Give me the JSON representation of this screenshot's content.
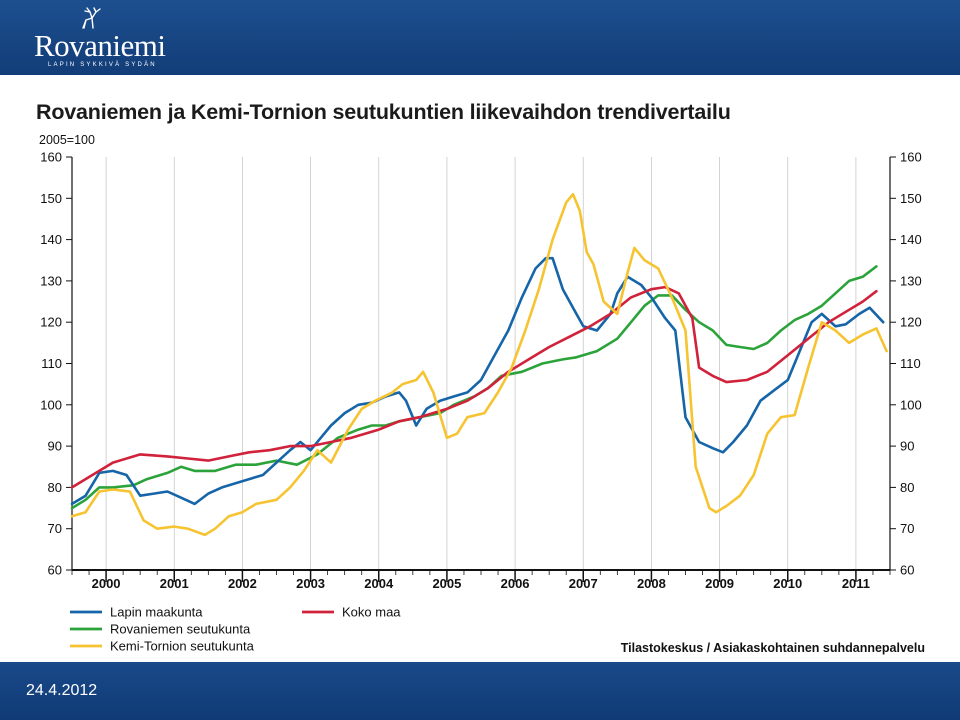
{
  "header": {
    "logo_text": "Rovaniemi",
    "logo_tagline": "LAPIN SYKKIVÄ SYDÄN",
    "brand_color": "#16437f"
  },
  "footer": {
    "date": "24.4.2012"
  },
  "chart_data": {
    "type": "line",
    "title": "Rovaniemen ja Kemi-Tornion seutukuntien liikevaihdon trendivertailu",
    "ylabel": "2005=100",
    "source": "Tilastokeskus / Asiakaskohtainen suhdannepalvelu",
    "ylim": [
      60,
      160
    ],
    "yticks": [
      60,
      70,
      80,
      90,
      100,
      110,
      120,
      130,
      140,
      150,
      160
    ],
    "xlim": [
      1999.5,
      2011.5
    ],
    "year_labels": [
      "2000",
      "2001",
      "2002",
      "2003",
      "2004",
      "2005",
      "2006",
      "2007",
      "2008",
      "2009",
      "2010",
      "2011"
    ],
    "grid": "vertical",
    "legend_position": "bottom",
    "series": [
      {
        "name": "Lapin maakunta",
        "color": "#1565a8",
        "points": [
          [
            1999.5,
            76
          ],
          [
            1999.7,
            78
          ],
          [
            1999.9,
            83.5
          ],
          [
            2000.1,
            84
          ],
          [
            2000.3,
            83
          ],
          [
            2000.5,
            78
          ],
          [
            2000.7,
            78.5
          ],
          [
            2000.9,
            79
          ],
          [
            2001.1,
            77.5
          ],
          [
            2001.3,
            76
          ],
          [
            2001.5,
            78.5
          ],
          [
            2001.7,
            80
          ],
          [
            2001.9,
            81
          ],
          [
            2002.1,
            82
          ],
          [
            2002.3,
            83
          ],
          [
            2002.5,
            86
          ],
          [
            2002.7,
            89
          ],
          [
            2002.85,
            91
          ],
          [
            2003.0,
            89
          ],
          [
            2003.15,
            92
          ],
          [
            2003.3,
            95
          ],
          [
            2003.5,
            98
          ],
          [
            2003.7,
            100
          ],
          [
            2003.9,
            100.5
          ],
          [
            2004.1,
            102
          ],
          [
            2004.3,
            103
          ],
          [
            2004.4,
            101
          ],
          [
            2004.55,
            95
          ],
          [
            2004.7,
            99
          ],
          [
            2004.9,
            101
          ],
          [
            2005.1,
            102
          ],
          [
            2005.3,
            103
          ],
          [
            2005.5,
            106
          ],
          [
            2005.7,
            112
          ],
          [
            2005.9,
            118
          ],
          [
            2006.1,
            126
          ],
          [
            2006.3,
            133
          ],
          [
            2006.45,
            135.5
          ],
          [
            2006.55,
            135.5
          ],
          [
            2006.7,
            128
          ],
          [
            2006.9,
            122
          ],
          [
            2007.0,
            119
          ],
          [
            2007.2,
            118
          ],
          [
            2007.4,
            122
          ],
          [
            2007.5,
            127
          ],
          [
            2007.65,
            131
          ],
          [
            2007.85,
            129
          ],
          [
            2008.0,
            126
          ],
          [
            2008.2,
            121
          ],
          [
            2008.35,
            118
          ],
          [
            2008.5,
            97
          ],
          [
            2008.7,
            91
          ],
          [
            2008.9,
            89.5
          ],
          [
            2009.05,
            88.5
          ],
          [
            2009.2,
            91
          ],
          [
            2009.4,
            95
          ],
          [
            2009.6,
            101
          ],
          [
            2009.8,
            103.5
          ],
          [
            2010.0,
            106
          ],
          [
            2010.15,
            112
          ],
          [
            2010.35,
            120
          ],
          [
            2010.5,
            122
          ],
          [
            2010.7,
            119
          ],
          [
            2010.85,
            119.5
          ],
          [
            2011.05,
            122
          ],
          [
            2011.2,
            123.5
          ],
          [
            2011.4,
            120
          ]
        ]
      },
      {
        "name": "Koko maa",
        "color": "#d0223a",
        "points": [
          [
            1999.5,
            80
          ],
          [
            1999.8,
            83
          ],
          [
            2000.1,
            86
          ],
          [
            2000.5,
            88
          ],
          [
            2000.9,
            87.5
          ],
          [
            2001.2,
            87
          ],
          [
            2001.5,
            86.5
          ],
          [
            2001.8,
            87.5
          ],
          [
            2002.1,
            88.5
          ],
          [
            2002.4,
            89
          ],
          [
            2002.7,
            90
          ],
          [
            2003.0,
            90
          ],
          [
            2003.3,
            91
          ],
          [
            2003.6,
            92
          ],
          [
            2004.0,
            94
          ],
          [
            2004.3,
            96
          ],
          [
            2004.6,
            97
          ],
          [
            2005.0,
            99
          ],
          [
            2005.3,
            101
          ],
          [
            2005.6,
            104
          ],
          [
            2005.9,
            108
          ],
          [
            2006.2,
            111
          ],
          [
            2006.5,
            114
          ],
          [
            2006.8,
            116.5
          ],
          [
            2007.1,
            119
          ],
          [
            2007.4,
            122
          ],
          [
            2007.7,
            126
          ],
          [
            2008.0,
            128
          ],
          [
            2008.2,
            128.5
          ],
          [
            2008.4,
            127
          ],
          [
            2008.6,
            121
          ],
          [
            2008.7,
            109
          ],
          [
            2008.9,
            107
          ],
          [
            2009.1,
            105.5
          ],
          [
            2009.4,
            106
          ],
          [
            2009.7,
            108
          ],
          [
            2010.0,
            112
          ],
          [
            2010.3,
            116
          ],
          [
            2010.6,
            120
          ],
          [
            2010.9,
            123
          ],
          [
            2011.1,
            125
          ],
          [
            2011.3,
            127.5
          ]
        ]
      },
      {
        "name": "Rovaniemen seutukunta",
        "color": "#2ca33a",
        "points": [
          [
            1999.5,
            75
          ],
          [
            1999.7,
            77
          ],
          [
            1999.9,
            80
          ],
          [
            2000.1,
            80
          ],
          [
            2000.4,
            80.5
          ],
          [
            2000.6,
            82
          ],
          [
            2000.9,
            83.5
          ],
          [
            2001.1,
            85
          ],
          [
            2001.3,
            84
          ],
          [
            2001.6,
            84
          ],
          [
            2001.9,
            85.5
          ],
          [
            2002.2,
            85.5
          ],
          [
            2002.5,
            86.5
          ],
          [
            2002.8,
            85.5
          ],
          [
            2003.1,
            88
          ],
          [
            2003.4,
            92
          ],
          [
            2003.7,
            94
          ],
          [
            2003.9,
            95
          ],
          [
            2004.1,
            95
          ],
          [
            2004.3,
            96
          ],
          [
            2004.6,
            97
          ],
          [
            2004.9,
            98
          ],
          [
            2005.1,
            100
          ],
          [
            2005.4,
            102
          ],
          [
            2005.6,
            104
          ],
          [
            2005.8,
            107
          ],
          [
            2006.1,
            108
          ],
          [
            2006.4,
            110
          ],
          [
            2006.7,
            111
          ],
          [
            2006.9,
            111.5
          ],
          [
            2007.2,
            113
          ],
          [
            2007.5,
            116
          ],
          [
            2007.7,
            120
          ],
          [
            2007.9,
            124
          ],
          [
            2008.1,
            126.5
          ],
          [
            2008.3,
            126.5
          ],
          [
            2008.5,
            123
          ],
          [
            2008.7,
            120
          ],
          [
            2008.9,
            118
          ],
          [
            2009.1,
            114.5
          ],
          [
            2009.3,
            114
          ],
          [
            2009.5,
            113.5
          ],
          [
            2009.7,
            115
          ],
          [
            2009.9,
            118
          ],
          [
            2010.1,
            120.5
          ],
          [
            2010.3,
            122
          ],
          [
            2010.5,
            124
          ],
          [
            2010.7,
            127
          ],
          [
            2010.9,
            130
          ],
          [
            2011.1,
            131
          ],
          [
            2011.3,
            133.5
          ]
        ]
      },
      {
        "name": "Kemi-Tornion seutukunta",
        "color": "#f6c331",
        "points": [
          [
            1999.5,
            73
          ],
          [
            1999.7,
            74
          ],
          [
            1999.9,
            79
          ],
          [
            2000.1,
            79.5
          ],
          [
            2000.35,
            79
          ],
          [
            2000.55,
            72
          ],
          [
            2000.75,
            70
          ],
          [
            2001.0,
            70.5
          ],
          [
            2001.2,
            70
          ],
          [
            2001.45,
            68.5
          ],
          [
            2001.6,
            70
          ],
          [
            2001.8,
            73
          ],
          [
            2002.0,
            74
          ],
          [
            2002.2,
            76
          ],
          [
            2002.5,
            77
          ],
          [
            2002.7,
            80
          ],
          [
            2002.9,
            84
          ],
          [
            2003.1,
            89
          ],
          [
            2003.3,
            86
          ],
          [
            2003.55,
            94
          ],
          [
            2003.75,
            99
          ],
          [
            2003.95,
            101
          ],
          [
            2004.2,
            103
          ],
          [
            2004.35,
            105
          ],
          [
            2004.55,
            106
          ],
          [
            2004.65,
            108
          ],
          [
            2004.8,
            103
          ],
          [
            2005.0,
            92
          ],
          [
            2005.15,
            93
          ],
          [
            2005.3,
            97
          ],
          [
            2005.55,
            98
          ],
          [
            2005.75,
            103
          ],
          [
            2005.95,
            109
          ],
          [
            2006.15,
            118
          ],
          [
            2006.35,
            128
          ],
          [
            2006.55,
            140
          ],
          [
            2006.75,
            149
          ],
          [
            2006.85,
            151
          ],
          [
            2006.95,
            147
          ],
          [
            2007.05,
            137
          ],
          [
            2007.15,
            134
          ],
          [
            2007.3,
            125
          ],
          [
            2007.5,
            122
          ],
          [
            2007.65,
            132
          ],
          [
            2007.75,
            138
          ],
          [
            2007.9,
            135
          ],
          [
            2008.1,
            133
          ],
          [
            2008.3,
            126
          ],
          [
            2008.5,
            118
          ],
          [
            2008.65,
            85
          ],
          [
            2008.85,
            75
          ],
          [
            2008.95,
            74
          ],
          [
            2009.1,
            75.5
          ],
          [
            2009.3,
            78
          ],
          [
            2009.5,
            83
          ],
          [
            2009.7,
            93
          ],
          [
            2009.9,
            97
          ],
          [
            2010.1,
            97.5
          ],
          [
            2010.3,
            109
          ],
          [
            2010.5,
            120
          ],
          [
            2010.7,
            118
          ],
          [
            2010.9,
            115
          ],
          [
            2011.1,
            117
          ],
          [
            2011.3,
            118.5
          ],
          [
            2011.45,
            113
          ]
        ]
      }
    ]
  }
}
